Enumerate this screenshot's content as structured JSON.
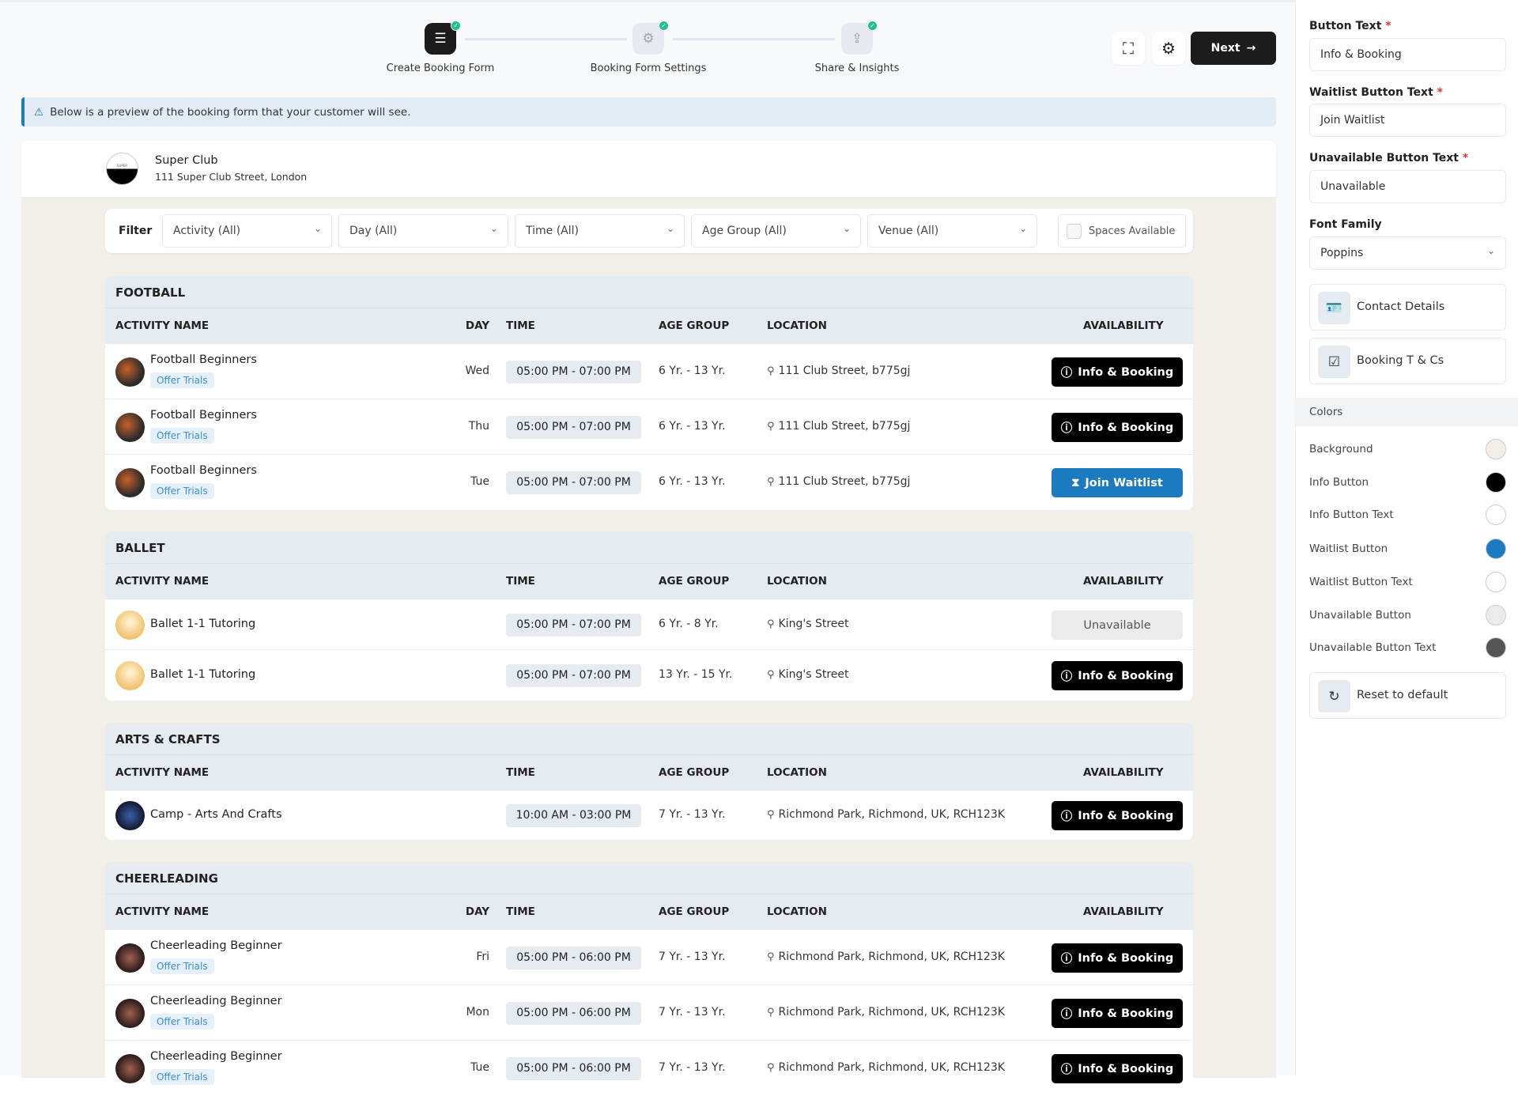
{
  "stepper": [
    {
      "label": "Create Booking Form",
      "icon": "form-list-icon",
      "active": true,
      "done": true
    },
    {
      "label": "Booking Form Settings",
      "icon": "gear-icon",
      "active": false,
      "done": true
    },
    {
      "label": "Share & Insights",
      "icon": "share-icon",
      "active": false,
      "done": true
    }
  ],
  "toolbar": {
    "next_label": "Next",
    "fullscreen_icon": "fullscreen-icon",
    "settings_icon": "gear-icon"
  },
  "banner": {
    "text": "Below is a preview of the booking form that your customer will see.",
    "icon": "warning-icon"
  },
  "club": {
    "name": "Super Club",
    "address": "111 Super Club Street, London",
    "logo_text": "SUPER CLUB"
  },
  "filter": {
    "label": "Filter",
    "selects": [
      "Activity (All)",
      "Day (All)",
      "Time (All)",
      "Age Group (All)",
      "Venue (All)"
    ],
    "spaces_label": "Spaces Available",
    "spaces_checked": false
  },
  "columns": {
    "name": "ACTIVITY NAME",
    "day": "DAY",
    "time": "TIME",
    "age": "AGE GROUP",
    "location": "LOCATION",
    "availability": "AVAILABILITY"
  },
  "sections": [
    {
      "title": "FOOTBALL",
      "show_day": true,
      "rows": [
        {
          "name": "Football Beginners",
          "badge": "Offer Trials",
          "day": "Wed",
          "time": "05:00 PM - 07:00 PM",
          "age": "6 Yr. - 13 Yr.",
          "location": "111 Club Street, b775gj",
          "status": "info",
          "label": "Info & Booking"
        },
        {
          "name": "Football Beginners",
          "badge": "Offer Trials",
          "day": "Thu",
          "time": "05:00 PM - 07:00 PM",
          "age": "6 Yr. - 13 Yr.",
          "location": "111 Club Street, b775gj",
          "status": "info",
          "label": "Info & Booking"
        },
        {
          "name": "Football Beginners",
          "badge": "Offer Trials",
          "day": "Tue",
          "time": "05:00 PM - 07:00 PM",
          "age": "6 Yr. - 13 Yr.",
          "location": "111 Club Street, b775gj",
          "status": "wait",
          "label": "Join Waitlist"
        }
      ]
    },
    {
      "title": "BALLET",
      "show_day": false,
      "rows": [
        {
          "name": "Ballet 1-1 Tutoring",
          "time": "05:00 PM - 07:00 PM",
          "age": "6 Yr. - 8 Yr.",
          "location": "King's Street",
          "status": "unav",
          "label": "Unavailable"
        },
        {
          "name": "Ballet 1-1 Tutoring",
          "time": "05:00 PM - 07:00 PM",
          "age": "13 Yr. - 15 Yr.",
          "location": "King's Street",
          "status": "info",
          "label": "Info & Booking"
        }
      ]
    },
    {
      "title": "ARTS & CRAFTS",
      "show_day": false,
      "rows": [
        {
          "name": "Camp - Arts And Crafts",
          "time": "10:00 AM - 03:00 PM",
          "age": "7 Yr. - 13 Yr.",
          "location": "Richmond Park, Richmond, UK, RCH123K",
          "status": "info",
          "label": "Info & Booking"
        }
      ]
    },
    {
      "title": "CHEERLEADING",
      "show_day": true,
      "rows": [
        {
          "name": "Cheerleading Beginner",
          "badge": "Offer Trials",
          "day": "Fri",
          "time": "05:00 PM - 06:00 PM",
          "age": "7 Yr. - 13 Yr.",
          "location": "Richmond Park, Richmond, UK, RCH123K",
          "status": "info",
          "label": "Info & Booking"
        },
        {
          "name": "Cheerleading Beginner",
          "badge": "Offer Trials",
          "day": "Mon",
          "time": "05:00 PM - 06:00 PM",
          "age": "7 Yr. - 13 Yr.",
          "location": "Richmond Park, Richmond, UK, RCH123K",
          "status": "info",
          "label": "Info & Booking"
        },
        {
          "name": "Cheerleading Beginner",
          "badge": "Offer Trials",
          "day": "Tue",
          "time": "05:00 PM - 06:00 PM",
          "age": "7 Yr. - 13 Yr.",
          "location": "Richmond Park, Richmond, UK, RCH123K",
          "status": "info",
          "label": "Info & Booking"
        }
      ]
    }
  ],
  "panel": {
    "button_text": {
      "label": "Button Text",
      "value": "Info & Booking"
    },
    "waitlist_text": {
      "label": "Waitlist Button Text",
      "value": "Join Waitlist"
    },
    "unavailable_text": {
      "label": "Unavailable Button Text",
      "value": "Unavailable"
    },
    "font_family": {
      "label": "Font Family",
      "value": "Poppins"
    },
    "contact_details": "Contact Details",
    "booking_tcs": "Booking T & Cs",
    "colors_heading": "Colors",
    "colors": [
      {
        "label": "Background",
        "color": "#f2efe8"
      },
      {
        "label": "Info Button",
        "color": "#000000"
      },
      {
        "label": "Info Button Text",
        "color": "#ffffff"
      },
      {
        "label": "Waitlist Button",
        "color": "#1b7ac0"
      },
      {
        "label": "Waitlist Button Text",
        "color": "#ffffff"
      },
      {
        "label": "Unavailable Button",
        "color": "#ebebeb"
      },
      {
        "label": "Unavailable Button Text",
        "color": "#555555"
      }
    ],
    "reset_label": "Reset to default"
  }
}
